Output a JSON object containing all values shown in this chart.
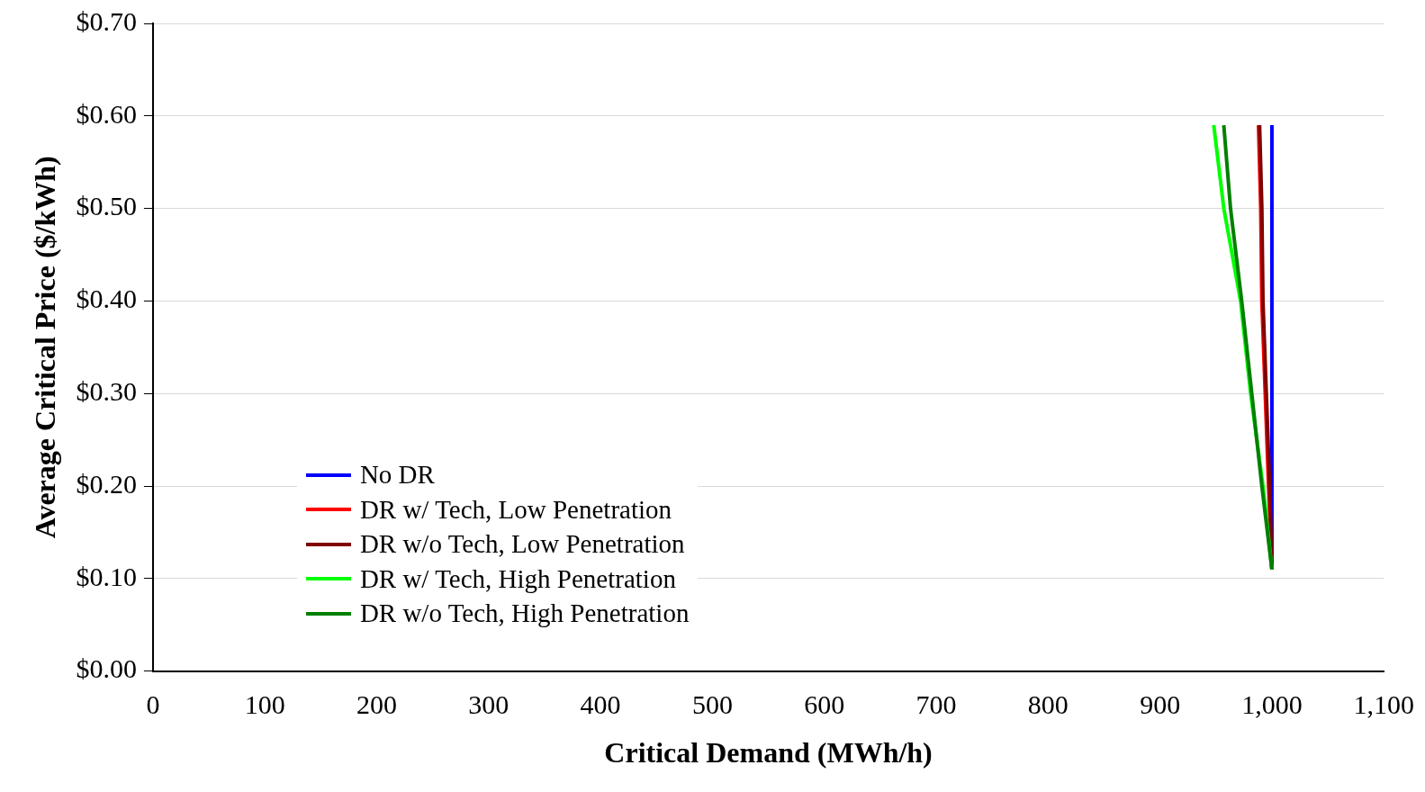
{
  "chart_data": {
    "type": "line",
    "xlabel": "Critical Demand (MWh/h)",
    "ylabel": "Average Critical Price ($/kWh)",
    "xlim": [
      0,
      1100
    ],
    "xticks": [
      0,
      100,
      200,
      300,
      400,
      500,
      600,
      700,
      800,
      900,
      {
        "value": 1000,
        "label": "1,000"
      },
      {
        "value": 1100,
        "label": "1,100"
      }
    ],
    "ylim": [
      0,
      0.7
    ],
    "yticks": [
      {
        "value": 0,
        "label": "$0.00"
      },
      {
        "value": 0.1,
        "label": "$0.10"
      },
      {
        "value": 0.2,
        "label": "$0.20"
      },
      {
        "value": 0.3,
        "label": "$0.30"
      },
      {
        "value": 0.4,
        "label": "$0.40"
      },
      {
        "value": 0.5,
        "label": "$0.50"
      },
      {
        "value": 0.6,
        "label": "$0.60"
      },
      {
        "value": 0.7,
        "label": "$0.70"
      }
    ],
    "grid": "y",
    "legend": "bottom left",
    "marker": "none",
    "line_style": "solid",
    "series": [
      {
        "name": "No DR",
        "color": "#0000ff",
        "x": [
          1000,
          1000,
          1000,
          1000,
          1000,
          1000
        ],
        "values": [
          0.11,
          0.2,
          0.3,
          0.4,
          0.5,
          0.59
        ]
      },
      {
        "name": "DR w/ Tech, Low Penetration",
        "color": "#ff0000",
        "x": [
          1000,
          997,
          994,
          991,
          990,
          988
        ],
        "values": [
          0.11,
          0.2,
          0.3,
          0.4,
          0.5,
          0.59
        ]
      },
      {
        "name": "DR w/o Tech, Low Penetration",
        "color": "#800000",
        "x": [
          1000,
          998,
          995,
          992,
          991,
          989
        ],
        "values": [
          0.11,
          0.2,
          0.3,
          0.4,
          0.5,
          0.59
        ]
      },
      {
        "name": "DR w/ Tech, High Penetration",
        "color": "#00ff00",
        "x": [
          1000,
          992,
          981,
          972,
          957,
          948
        ],
        "values": [
          0.11,
          0.2,
          0.3,
          0.4,
          0.5,
          0.59
        ]
      },
      {
        "name": "DR w/o Tech, High Penetration",
        "color": "#008000",
        "x": [
          1000,
          991,
          982,
          973,
          963,
          957
        ],
        "values": [
          0.11,
          0.2,
          0.3,
          0.4,
          0.5,
          0.59
        ]
      }
    ]
  }
}
